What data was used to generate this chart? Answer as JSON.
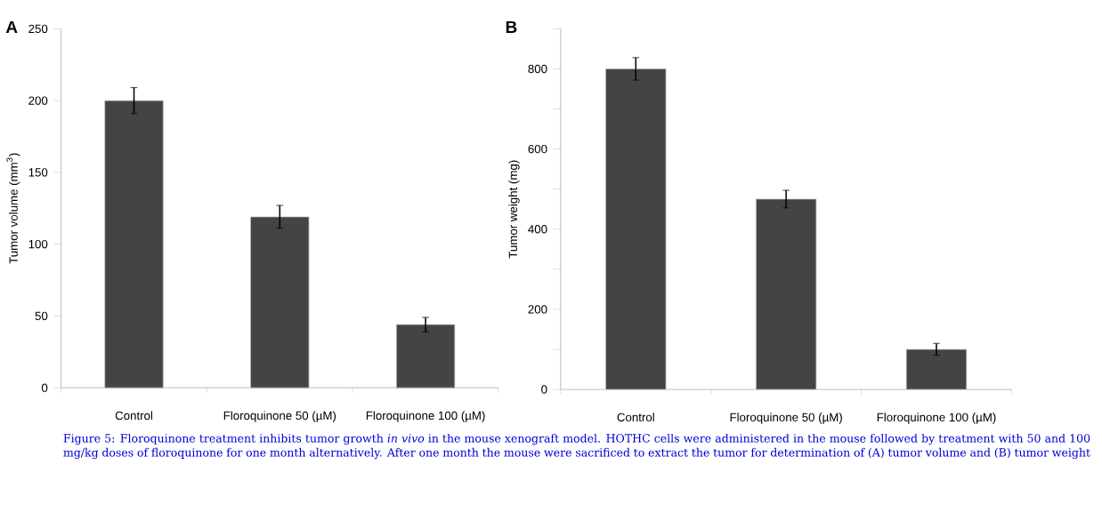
{
  "chart_data": [
    {
      "type": "bar",
      "title": "A",
      "ylabel": "Tumor volume  (mm$^{3}$)",
      "categories": [
        "Control",
        "Floroquinone 50 (µM)",
        "Floroquinone 100 (µM)"
      ],
      "values": [
        200,
        119,
        44
      ],
      "errors": [
        9,
        8,
        5
      ],
      "color": "#444444",
      "ylim": [
        0,
        250
      ],
      "yticks": [
        0,
        50,
        100,
        150,
        200,
        250
      ],
      "annotations": [
        "Figure 5: Floroquinone treatment inhibits tumor growth *in vivo* in the mouse xenograft model. HOTHC cells were administered in the mouse followed by treatment with 50 and 100 mg/kg doses of floroquinone for one month alternatively. After one month the mouse were sacrificed to extract the tumor for determination of (A) tumor volume and (B) tumor weight"
      ]
    },
    {
      "type": "bar",
      "title": "B",
      "ylabel": "Tumor weight  (mg)",
      "categories": [
        "Control",
        "Floroquinone 50 (µM)",
        "Floroquinone 100 (µM)"
      ],
      "values": [
        800,
        475,
        100
      ],
      "errors": [
        28,
        22,
        15
      ],
      "color": "#444444",
      "ylim": [
        0,
        900
      ],
      "yticks": [
        0,
        {
          "value": 100,
          "label": null
        },
        200,
        {
          "value": 300,
          "label": null
        },
        400,
        {
          "value": 500,
          "label": null
        },
        600,
        {
          "value": 700,
          "label": null
        },
        800,
        {
          "value": 900,
          "label": null
        }
      ]
    }
  ]
}
